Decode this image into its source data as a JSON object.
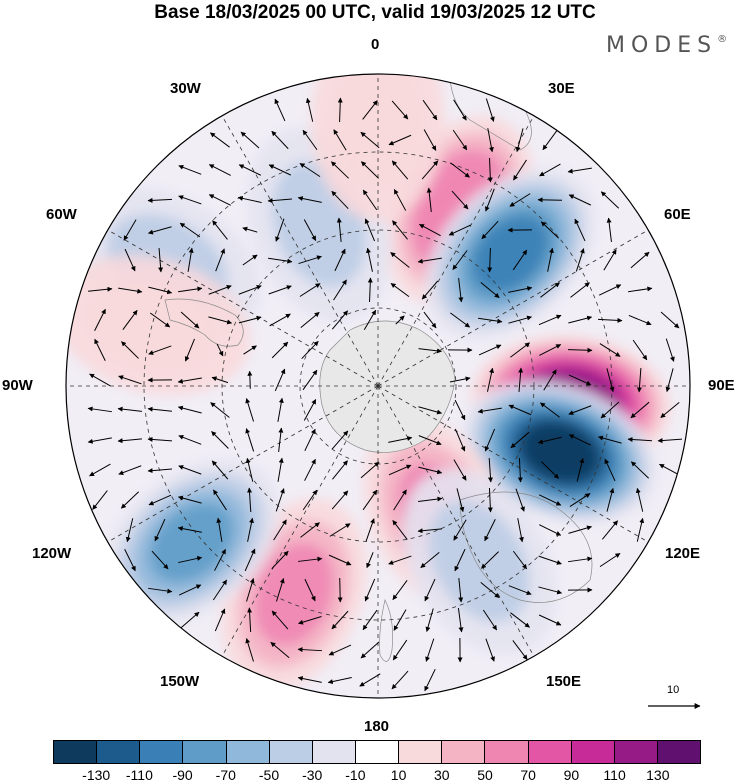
{
  "title": "Base 18/03/2025 00 UTC, valid 19/03/2025 12 UTC",
  "logo": "MODES",
  "logo_mark": "®",
  "longitude_labels": {
    "lon_0": "0",
    "lon_30e": "30E",
    "lon_60e": "60E",
    "lon_90e": "90E",
    "lon_120e": "120E",
    "lon_150e": "150E",
    "lon_180": "180",
    "lon_150w": "150W",
    "lon_120w": "120W",
    "lon_90w": "90W",
    "lon_60w": "60W",
    "lon_30w": "30W"
  },
  "reference_vector": "10",
  "colorbar": {
    "colors": [
      "#0e3a5e",
      "#1d5b8c",
      "#3a7fb5",
      "#5f9dc8",
      "#8fb8da",
      "#bccde6",
      "#e3e3f0",
      "#ffffff",
      "#f8d9dc",
      "#f4b4c4",
      "#ef86b2",
      "#e356a6",
      "#c62b98",
      "#961b87",
      "#60116f"
    ],
    "ticks": [
      "-130",
      "-110",
      "-90",
      "-70",
      "-50",
      "-30",
      "-10",
      "10",
      "30",
      "50",
      "70",
      "90",
      "110",
      "130"
    ]
  },
  "map": {
    "projection": "south-polar-stereographic",
    "anomalies": [
      {
        "lon": 25,
        "colat": 0.62,
        "value": 70
      },
      {
        "lon": 45,
        "colat": 0.6,
        "value": -90
      },
      {
        "lon": 95,
        "colat": 0.62,
        "value": 130
      },
      {
        "lon": 110,
        "colat": 0.62,
        "value": -130
      },
      {
        "lon": 155,
        "colat": 0.45,
        "value": 60
      },
      {
        "lon": 150,
        "colat": 0.65,
        "value": -30
      },
      {
        "lon": 202,
        "colat": 0.72,
        "value": 60
      },
      {
        "lon": 230,
        "colat": 0.78,
        "value": -70
      },
      {
        "lon": 300,
        "colat": 0.78,
        "value": -30
      },
      {
        "lon": 285,
        "colat": 0.75,
        "value": 30
      },
      {
        "lon": 340,
        "colat": 0.55,
        "value": -30
      },
      {
        "lon": 0,
        "colat": 0.85,
        "value": 30
      }
    ]
  }
}
